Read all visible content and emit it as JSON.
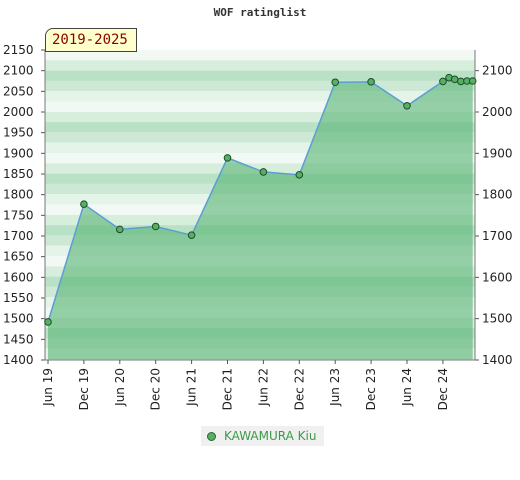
{
  "title": "WOF ratinglist",
  "badge": "2019-2025",
  "chart_data": {
    "type": "line",
    "title": "WOF ratinglist",
    "xlabel": "",
    "ylabel": "",
    "ylim": [
      1400,
      2150
    ],
    "y_ticks_left": [
      1400,
      1450,
      1500,
      1550,
      1600,
      1650,
      1700,
      1750,
      1800,
      1850,
      1900,
      1950,
      2000,
      2050,
      2100,
      2150
    ],
    "y_ticks_right": [
      1400,
      1500,
      1600,
      1700,
      1800,
      1900,
      2000,
      2100
    ],
    "x_tick_labels": [
      "Jun 19",
      "Dec 19",
      "Jun 20",
      "Dec 20",
      "Jun 21",
      "Dec 21",
      "Jun 22",
      "Dec 22",
      "Jun 23",
      "Dec 23",
      "Jun 24",
      "Dec 24"
    ],
    "x_tick_positions": [
      0,
      1,
      2,
      3,
      4,
      5,
      6,
      7,
      8,
      9,
      10,
      11
    ],
    "legend_position": "bottom",
    "series": [
      {
        "name": "KAWAMURA Kiu",
        "color": "#55b065",
        "x": [
          0,
          1,
          2,
          3,
          4,
          5,
          6,
          7,
          8,
          9,
          10,
          11,
          11.17,
          11.33,
          11.5,
          11.67,
          11.83
        ],
        "values": [
          1492,
          1777,
          1716,
          1723,
          1702,
          1889,
          1855,
          1848,
          2072,
          2073,
          2015,
          2074,
          2083,
          2079,
          2074,
          2075,
          2075
        ]
      }
    ]
  }
}
